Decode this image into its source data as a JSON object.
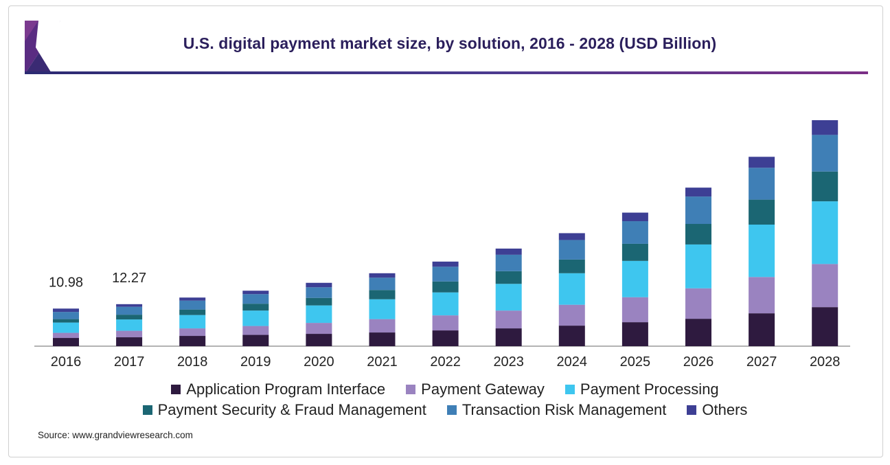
{
  "header": {
    "title": "U.S. digital payment market size, by solution, 2016 - 2028 (USD Billion)"
  },
  "source_text": "Source: www.grandviewresearch.com",
  "chart_data": {
    "type": "bar",
    "stacked": true,
    "title": "U.S. digital payment market size, by solution, 2016 - 2028 (USD Billion)",
    "xlabel": "",
    "ylabel": "",
    "categories": [
      "2016",
      "2017",
      "2018",
      "2019",
      "2020",
      "2021",
      "2022",
      "2023",
      "2024",
      "2025",
      "2026",
      "2027",
      "2028"
    ],
    "series": [
      {
        "name": "Application Program Interface",
        "color": "#2e1a3f",
        "values": [
          2.4,
          2.6,
          3.0,
          3.3,
          3.6,
          4.0,
          4.6,
          5.2,
          6.0,
          7.0,
          8.0,
          9.6,
          11.4
        ]
      },
      {
        "name": "Payment Gateway",
        "color": "#9a83c0",
        "values": [
          1.5,
          1.9,
          2.2,
          2.6,
          3.2,
          3.9,
          4.4,
          5.2,
          6.1,
          7.3,
          8.9,
          10.6,
          12.6
        ]
      },
      {
        "name": "Payment Processing",
        "color": "#3ec6ef",
        "values": [
          3.0,
          3.3,
          3.9,
          4.5,
          5.1,
          5.8,
          6.7,
          7.8,
          9.2,
          10.6,
          12.8,
          15.3,
          18.3
        ]
      },
      {
        "name": "Payment Security & Fraud Management",
        "color": "#1b6673",
        "values": [
          1.0,
          1.4,
          1.6,
          2.0,
          2.2,
          2.7,
          3.2,
          3.7,
          4.0,
          5.0,
          6.0,
          7.3,
          8.7
        ]
      },
      {
        "name": "Transaction Risk Management",
        "color": "#3f7fb6",
        "values": [
          2.1,
          2.3,
          2.6,
          2.8,
          3.1,
          3.6,
          4.3,
          4.8,
          5.7,
          6.6,
          8.0,
          9.3,
          10.7
        ]
      },
      {
        "name": "Others",
        "color": "#3d3f94",
        "values": [
          0.98,
          0.77,
          0.9,
          1.0,
          1.3,
          1.3,
          1.5,
          1.8,
          2.0,
          2.5,
          2.6,
          3.2,
          4.3
        ]
      }
    ],
    "data_labels": [
      {
        "category": "2016",
        "text": "10.98"
      },
      {
        "category": "2017",
        "text": "12.27"
      }
    ],
    "ylim": [
      0,
      70
    ],
    "grid": false,
    "legend_position": "bottom"
  }
}
